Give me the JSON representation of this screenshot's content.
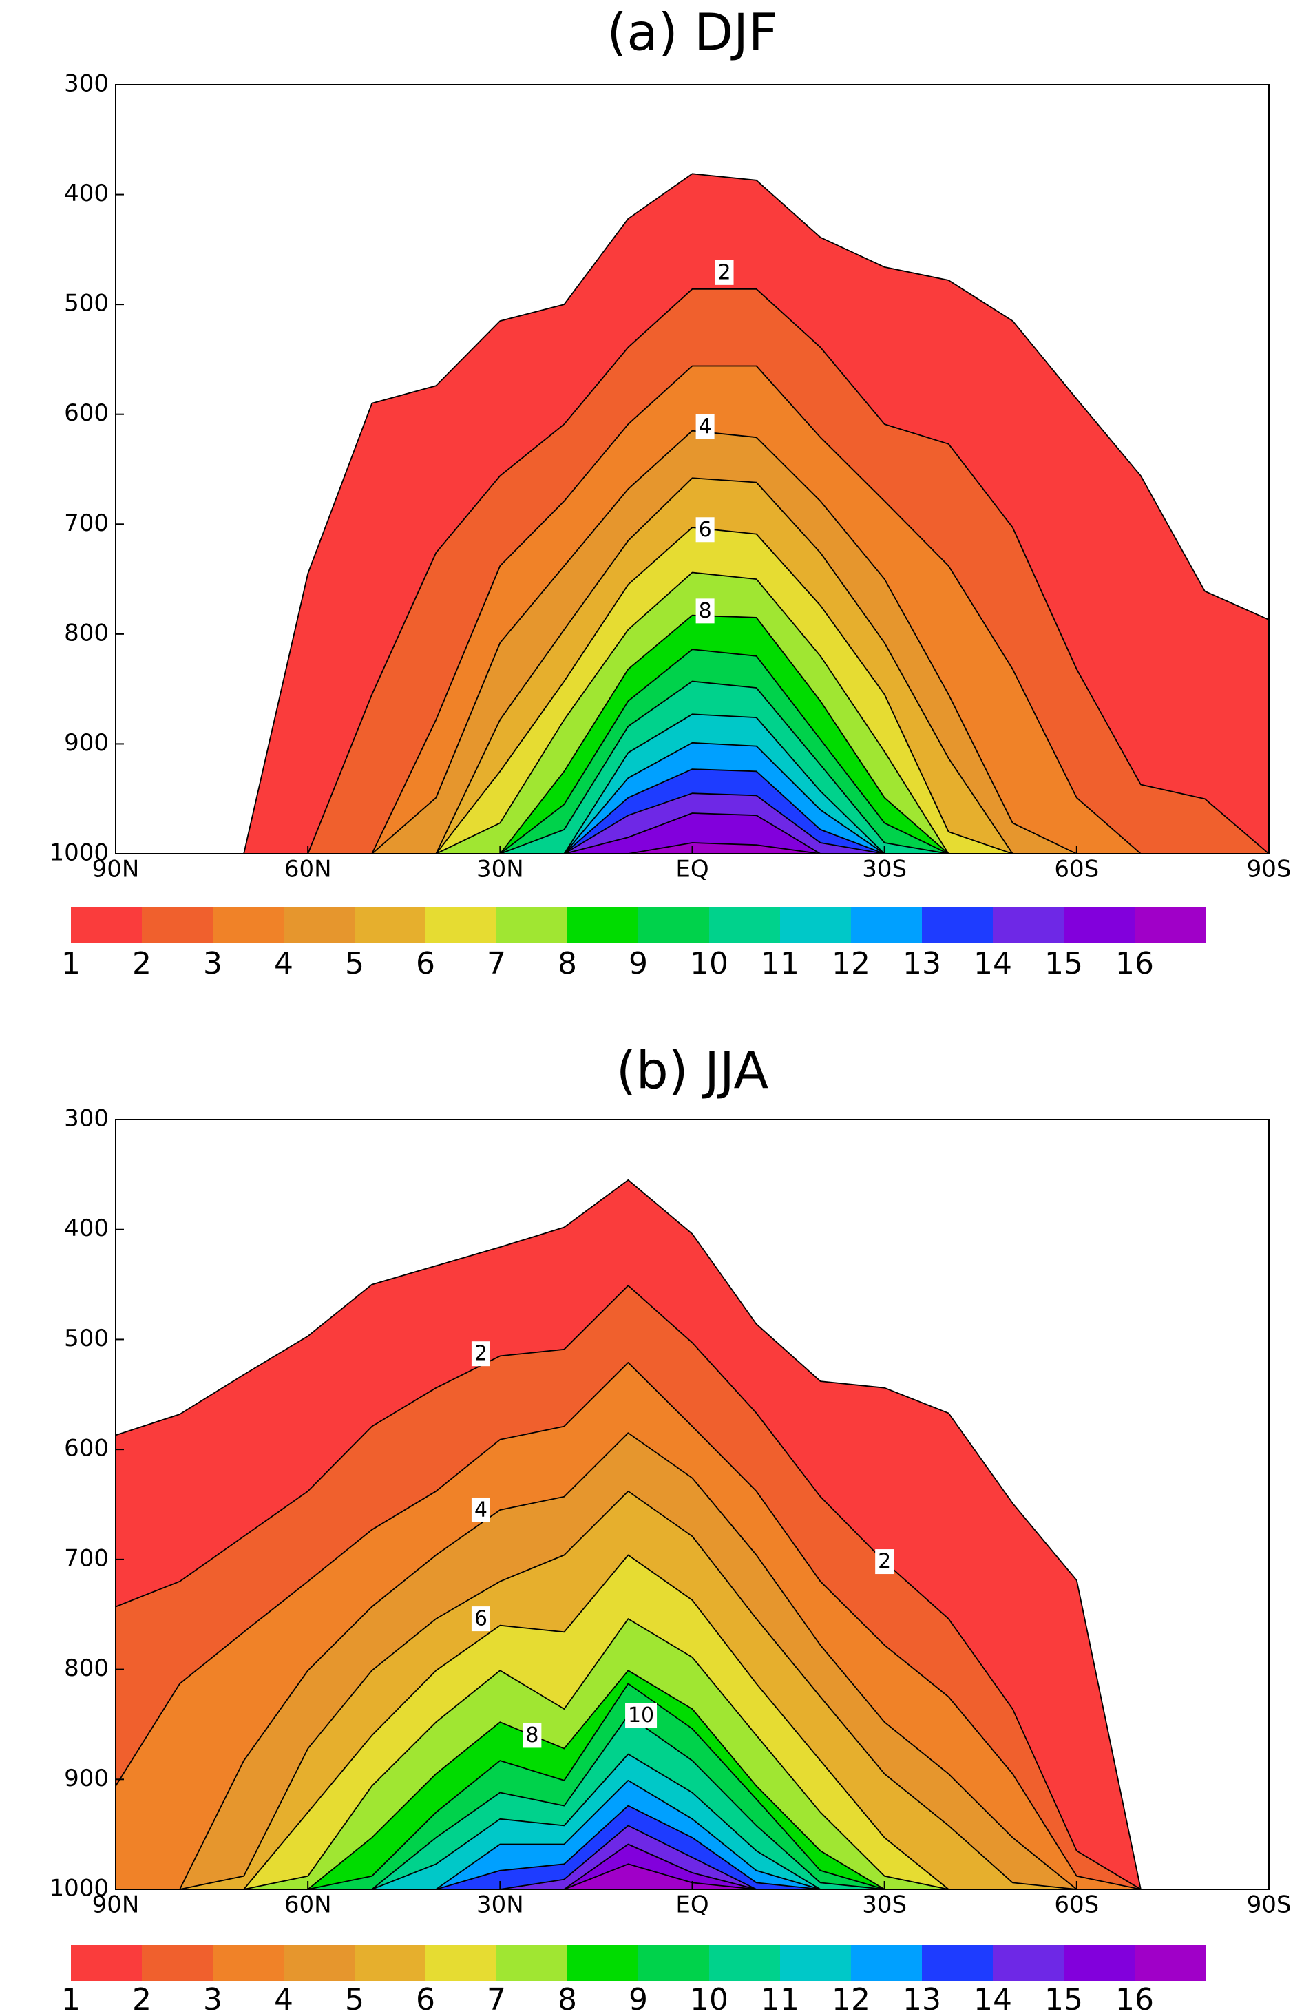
{
  "chart_data": [
    {
      "type": "contour",
      "title": "(a) DJF",
      "x": [
        90,
        80,
        70,
        60,
        50,
        40,
        30,
        20,
        10,
        0,
        -10,
        -20,
        -30,
        -40,
        -50,
        -60,
        -70,
        -80,
        -90
      ],
      "xlim": [
        90,
        -90
      ],
      "xticks": [
        {
          "value": 90,
          "label": "90N"
        },
        {
          "value": 60,
          "label": "60N"
        },
        {
          "value": 30,
          "label": "30N"
        },
        {
          "value": 0,
          "label": "EQ"
        },
        {
          "value": -30,
          "label": "30S"
        },
        {
          "value": -60,
          "label": "60S"
        },
        {
          "value": -90,
          "label": "90S"
        }
      ],
      "ylim": [
        1000,
        300
      ],
      "yticks": [
        300,
        400,
        500,
        600,
        700,
        800,
        900,
        1000
      ],
      "contours": [
        [
          1000,
          1000,
          1000,
          745,
          590,
          574,
          515,
          500,
          422,
          381,
          387,
          439,
          466,
          478,
          515,
          586,
          656,
          761,
          787
        ],
        [
          1000,
          1000,
          1000,
          1000,
          855,
          726,
          656,
          609,
          539,
          486,
          486,
          539,
          609,
          627,
          703,
          832,
          937,
          950,
          1000
        ],
        [
          1000,
          1000,
          1000,
          1000,
          1000,
          878,
          738,
          679,
          609,
          556,
          556,
          621,
          679,
          738,
          832,
          949,
          1000,
          1000,
          1000
        ],
        [
          1000,
          1000,
          1000,
          1000,
          1000,
          949,
          808,
          738,
          668,
          615,
          621,
          679,
          750,
          855,
          972,
          1000,
          1000,
          1000,
          1000
        ],
        [
          1000,
          1000,
          1000,
          1000,
          1000,
          1000,
          878,
          796,
          715,
          658,
          662,
          726,
          808,
          913,
          1000,
          1000,
          1000,
          1000,
          1000
        ],
        [
          1000,
          1000,
          1000,
          1000,
          1000,
          1000,
          925,
          843,
          755,
          703,
          709,
          774,
          855,
          980,
          1000,
          1000,
          1000,
          1000,
          1000
        ],
        [
          1000,
          1000,
          1000,
          1000,
          1000,
          1000,
          972,
          878,
          796,
          744,
          750,
          820,
          907,
          1000,
          1000,
          1000,
          1000,
          1000,
          1000
        ],
        [
          1000,
          1000,
          1000,
          1000,
          1000,
          1000,
          1000,
          925,
          832,
          783,
          785,
          861,
          949,
          1000,
          1000,
          1000,
          1000,
          1000,
          1000
        ],
        [
          1000,
          1000,
          1000,
          1000,
          1000,
          1000,
          1000,
          955,
          861,
          814,
          820,
          896,
          972,
          1000,
          1000,
          1000,
          1000,
          1000,
          1000
        ],
        [
          1000,
          1000,
          1000,
          1000,
          1000,
          1000,
          1000,
          978,
          884,
          843,
          849,
          919,
          990,
          1000,
          1000,
          1000,
          1000,
          1000,
          1000
        ],
        [
          1000,
          1000,
          1000,
          1000,
          1000,
          1000,
          1000,
          1000,
          908,
          873,
          876,
          943,
          1000,
          1000,
          1000,
          1000,
          1000,
          1000,
          1000
        ],
        [
          1000,
          1000,
          1000,
          1000,
          1000,
          1000,
          1000,
          1000,
          931,
          899,
          902,
          960,
          1000,
          1000,
          1000,
          1000,
          1000,
          1000,
          1000
        ],
        [
          1000,
          1000,
          1000,
          1000,
          1000,
          1000,
          1000,
          1000,
          949,
          923,
          925,
          978,
          1000,
          1000,
          1000,
          1000,
          1000,
          1000,
          1000
        ],
        [
          1000,
          1000,
          1000,
          1000,
          1000,
          1000,
          1000,
          1000,
          965,
          945,
          947,
          990,
          1000,
          1000,
          1000,
          1000,
          1000,
          1000,
          1000
        ],
        [
          1000,
          1000,
          1000,
          1000,
          1000,
          1000,
          1000,
          1000,
          985,
          963,
          965,
          1000,
          1000,
          1000,
          1000,
          1000,
          1000,
          1000,
          1000
        ],
        [
          1000,
          1000,
          1000,
          1000,
          1000,
          1000,
          1000,
          1000,
          1000,
          990,
          992,
          1000,
          1000,
          1000,
          1000,
          1000,
          1000,
          1000,
          1000
        ]
      ],
      "contour_labels": [
        {
          "value": 2,
          "x": -5,
          "y": 471
        },
        {
          "value": 4,
          "x": -2,
          "y": 611
        },
        {
          "value": 6,
          "x": -2,
          "y": 705
        },
        {
          "value": 8,
          "x": -2,
          "y": 779
        }
      ],
      "colorbar": {
        "ticks": [
          1,
          2,
          3,
          4,
          5,
          6,
          7,
          8,
          9,
          10,
          11,
          12,
          13,
          14,
          15,
          16
        ],
        "colors": [
          "#fa3c3c",
          "#f0602d",
          "#f08228",
          "#e6962d",
          "#e6af2d",
          "#e6dc32",
          "#a0e632",
          "#00dc00",
          "#00d24b",
          "#00d28c",
          "#00c8c8",
          "#00a0ff",
          "#1e3cff",
          "#6e28e6",
          "#8200dc",
          "#a000c8"
        ]
      }
    },
    {
      "type": "contour",
      "title": "(b) JJA",
      "x": [
        90,
        80,
        70,
        60,
        50,
        40,
        30,
        20,
        10,
        0,
        -10,
        -20,
        -30,
        -40,
        -50,
        -60,
        -70,
        -80,
        -90
      ],
      "xlim": [
        90,
        -90
      ],
      "xticks": [
        {
          "value": 90,
          "label": "90N"
        },
        {
          "value": 60,
          "label": "60N"
        },
        {
          "value": 30,
          "label": "30N"
        },
        {
          "value": 0,
          "label": "EQ"
        },
        {
          "value": -30,
          "label": "30S"
        },
        {
          "value": -60,
          "label": "60S"
        },
        {
          "value": -90,
          "label": "90S"
        }
      ],
      "ylim": [
        1000,
        300
      ],
      "yticks": [
        300,
        400,
        500,
        600,
        700,
        800,
        900,
        1000
      ],
      "contours": [
        [
          587,
          568,
          532,
          497,
          450,
          433,
          416,
          398,
          355,
          404,
          486,
          538,
          544,
          567,
          649,
          719,
          1000,
          1000,
          1000
        ],
        [
          743,
          720,
          679,
          638,
          579,
          544,
          515,
          509,
          451,
          503,
          567,
          643,
          702,
          754,
          836,
          965,
          1000,
          1000,
          1000
        ],
        [
          906,
          813,
          766,
          720,
          673,
          638,
          591,
          579,
          521,
          579,
          638,
          720,
          778,
          825,
          895,
          988,
          1000,
          1000,
          1000
        ],
        [
          1000,
          1000,
          883,
          801,
          743,
          696,
          655,
          643,
          585,
          626,
          696,
          778,
          848,
          895,
          953,
          1000,
          1000,
          1000,
          1000
        ],
        [
          1000,
          1000,
          988,
          872,
          801,
          754,
          720,
          696,
          638,
          679,
          754,
          825,
          895,
          942,
          994,
          1000,
          1000,
          1000,
          1000
        ],
        [
          1000,
          1000,
          1000,
          930,
          860,
          801,
          760,
          766,
          696,
          737,
          813,
          883,
          953,
          1000,
          1000,
          1000,
          1000,
          1000,
          1000
        ],
        [
          1000,
          1000,
          1000,
          988,
          906,
          848,
          801,
          836,
          754,
          789,
          860,
          930,
          988,
          1000,
          1000,
          1000,
          1000,
          1000,
          1000
        ],
        [
          1000,
          1000,
          1000,
          1000,
          953,
          895,
          848,
          872,
          801,
          836,
          906,
          965,
          1000,
          1000,
          1000,
          1000,
          1000,
          1000,
          1000
        ],
        [
          1000,
          1000,
          1000,
          1000,
          988,
          930,
          883,
          901,
          813,
          854,
          918,
          983,
          1000,
          1000,
          1000,
          1000,
          1000,
          1000,
          1000
        ],
        [
          1000,
          1000,
          1000,
          1000,
          1000,
          953,
          912,
          924,
          842,
          883,
          942,
          994,
          1000,
          1000,
          1000,
          1000,
          1000,
          1000,
          1000
        ],
        [
          1000,
          1000,
          1000,
          1000,
          1000,
          977,
          936,
          942,
          877,
          912,
          965,
          1000,
          1000,
          1000,
          1000,
          1000,
          1000,
          1000,
          1000
        ],
        [
          1000,
          1000,
          1000,
          1000,
          1000,
          1000,
          959,
          959,
          901,
          936,
          983,
          1000,
          1000,
          1000,
          1000,
          1000,
          1000,
          1000,
          1000
        ],
        [
          1000,
          1000,
          1000,
          1000,
          1000,
          1000,
          983,
          977,
          924,
          953,
          994,
          1000,
          1000,
          1000,
          1000,
          1000,
          1000,
          1000,
          1000
        ],
        [
          1000,
          1000,
          1000,
          1000,
          1000,
          1000,
          1000,
          991,
          942,
          971,
          1000,
          1000,
          1000,
          1000,
          1000,
          1000,
          1000,
          1000,
          1000
        ],
        [
          1000,
          1000,
          1000,
          1000,
          1000,
          1000,
          1000,
          1000,
          959,
          985,
          1000,
          1000,
          1000,
          1000,
          1000,
          1000,
          1000,
          1000,
          1000
        ],
        [
          1000,
          1000,
          1000,
          1000,
          1000,
          1000,
          1000,
          1000,
          977,
          994,
          1000,
          1000,
          1000,
          1000,
          1000,
          1000,
          1000,
          1000,
          1000
        ]
      ],
      "contour_labels": [
        {
          "value": 2,
          "x": 33,
          "y": 513
        },
        {
          "value": 4,
          "x": 33,
          "y": 655
        },
        {
          "value": 6,
          "x": 33,
          "y": 754
        },
        {
          "value": 8,
          "x": 25,
          "y": 860
        },
        {
          "value": 10,
          "x": 8,
          "y": 842
        },
        {
          "value": 2,
          "x": -30,
          "y": 702
        }
      ],
      "colorbar": {
        "ticks": [
          1,
          2,
          3,
          4,
          5,
          6,
          7,
          8,
          9,
          10,
          11,
          12,
          13,
          14,
          15,
          16
        ],
        "colors": [
          "#fa3c3c",
          "#f0602d",
          "#f08228",
          "#e6962d",
          "#e6af2d",
          "#e6dc32",
          "#a0e632",
          "#00dc00",
          "#00d24b",
          "#00d28c",
          "#00c8c8",
          "#00a0ff",
          "#1e3cff",
          "#6e28e6",
          "#8200dc",
          "#a000c8"
        ]
      }
    }
  ]
}
